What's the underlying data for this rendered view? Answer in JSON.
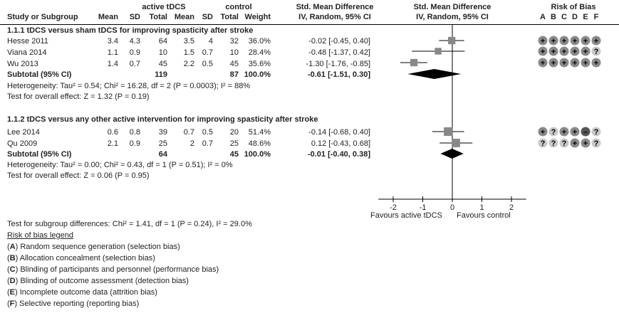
{
  "header": {
    "group1": "active tDCS",
    "group2": "control",
    "effect_title": "Std. Mean Difference",
    "effect_sub": "IV, Random, 95% CI",
    "plot_title": "Std. Mean Difference",
    "plot_sub": "IV, Random, 95% CI",
    "rob_title": "Risk of Bias",
    "columns": [
      "Study or Subgroup",
      "Mean",
      "SD",
      "Total",
      "Mean",
      "SD",
      "Total",
      "Weight"
    ],
    "rob_letters": [
      "A",
      "B",
      "C",
      "D",
      "E",
      "F"
    ]
  },
  "subgroups": [
    {
      "title": "1.1.1 tDCS versus sham tDCS for improving spasticity after stroke",
      "studies": [
        {
          "name": "Hesse 2011",
          "m1": "3.4",
          "sd1": "4.3",
          "n1": "64",
          "m2": "3.5",
          "sd2": "4",
          "n2": "32",
          "weight": "36.0%",
          "ci_text": "-0.02 [-0.45, 0.40]",
          "rob": [
            "+",
            "+",
            "+",
            "+",
            "+",
            "+"
          ]
        },
        {
          "name": "Viana 2014",
          "m1": "1.1",
          "sd1": "0.9",
          "n1": "10",
          "m2": "1.5",
          "sd2": "0.7",
          "n2": "10",
          "weight": "28.4%",
          "ci_text": "-0.48 [-1.37, 0.42]",
          "rob": [
            "+",
            "+",
            "+",
            "+",
            "+",
            "?"
          ]
        },
        {
          "name": "Wu 2013",
          "m1": "1.4",
          "sd1": "0.7",
          "n1": "45",
          "m2": "2.2",
          "sd2": "0.5",
          "n2": "45",
          "weight": "35.6%",
          "ci_text": "-1.30 [-1.76, -0.85]",
          "rob": [
            "+",
            "+",
            "+",
            "+",
            "+",
            "+"
          ]
        }
      ],
      "subtotal": {
        "label": "Subtotal (95% CI)",
        "n1": "119",
        "n2": "87",
        "weight": "100.0%",
        "ci_text": "-0.61 [-1.51, 0.30]"
      },
      "heterogeneity": "Heterogeneity: Tau² = 0.54; Chi² = 16.28, df = 2 (P = 0.0003); I² = 88%",
      "overall": "Test for overall effect: Z = 1.32 (P = 0.19)"
    },
    {
      "title": "1.1.2 tDCS versus any other active intervention for improving spasticity after stroke",
      "studies": [
        {
          "name": "Lee 2014",
          "m1": "0.6",
          "sd1": "0.8",
          "n1": "39",
          "m2": "0.7",
          "sd2": "0.5",
          "n2": "20",
          "weight": "51.4%",
          "ci_text": "-0.14 [-0.68, 0.40]",
          "rob": [
            "+",
            "?",
            "+",
            "+",
            "-",
            "?"
          ]
        },
        {
          "name": "Qu 2009",
          "m1": "2.1",
          "sd1": "0.9",
          "n1": "25",
          "m2": "2",
          "sd2": "0.7",
          "n2": "25",
          "weight": "48.6%",
          "ci_text": "0.12 [-0.43, 0.68]",
          "rob": [
            "?",
            "?",
            "?",
            "+",
            "+",
            "?"
          ]
        }
      ],
      "subtotal": {
        "label": "Subtotal (95% CI)",
        "n1": "64",
        "n2": "45",
        "weight": "100.0%",
        "ci_text": "-0.01 [-0.40, 0.38]"
      },
      "heterogeneity": "Heterogeneity: Tau² = 0.00; Chi² = 0.43, df = 1 (P = 0.51); I² = 0%",
      "overall": "Test for overall effect: Z = 0.06 (P = 0.95)"
    }
  ],
  "axis": {
    "favours_left": "Favours active tDCS",
    "favours_right": "Favours control"
  },
  "footer": {
    "subgroup_test": "Test for subgroup differences: Chi² = 1.41, df = 1 (P = 0.24), I² = 29.0%",
    "legend_title": "Risk of bias legend",
    "legend_items": [
      {
        "letter": "A",
        "text": ") Random sequence generation (selection bias)"
      },
      {
        "letter": "B",
        "text": ") Allocation concealment (selection bias)"
      },
      {
        "letter": "C",
        "text": ") Blinding of participants and personnel (performance bias)"
      },
      {
        "letter": "D",
        "text": ") Blinding of outcome assessment (detection bias)"
      },
      {
        "letter": "E",
        "text": ") Incomplete outcome data (attrition bias)"
      },
      {
        "letter": "F",
        "text": ") Selective reporting (reporting bias)"
      }
    ]
  },
  "colors": {
    "square": "#888888",
    "diamond": "#000000",
    "rob_low": "#8a8a8a",
    "rob_unclear": "#c8c8c8",
    "rob_high": "#555555"
  },
  "chart_data": {
    "type": "forest",
    "title": "Std. Mean Difference IV, Random, 95% CI",
    "xlabel_left": "Favours active tDCS",
    "xlabel_right": "Favours control",
    "xlim": [
      -2.5,
      2.5
    ],
    "xticks": [
      -2,
      -1,
      0,
      1,
      2
    ],
    "xtick_labels": [
      "-2",
      "-1",
      "0",
      "1",
      "2"
    ],
    "studies": [
      {
        "name": "Hesse 2011",
        "est": -0.02,
        "lo": -0.45,
        "hi": 0.4,
        "weight": 36.0
      },
      {
        "name": "Viana 2014",
        "est": -0.48,
        "lo": -1.37,
        "hi": 0.42,
        "weight": 28.4
      },
      {
        "name": "Wu 2013",
        "est": -1.3,
        "lo": -1.76,
        "hi": -0.85,
        "weight": 35.6
      },
      {
        "name": "Lee 2014",
        "est": -0.14,
        "lo": -0.68,
        "hi": 0.4,
        "weight": 51.4
      },
      {
        "name": "Qu 2009",
        "est": 0.12,
        "lo": -0.43,
        "hi": 0.68,
        "weight": 48.6
      }
    ],
    "subtotals": [
      {
        "name": "Subtotal 1.1.1",
        "est": -0.61,
        "lo": -1.51,
        "hi": 0.3
      },
      {
        "name": "Subtotal 1.1.2",
        "est": -0.01,
        "lo": -0.4,
        "hi": 0.38
      }
    ]
  }
}
